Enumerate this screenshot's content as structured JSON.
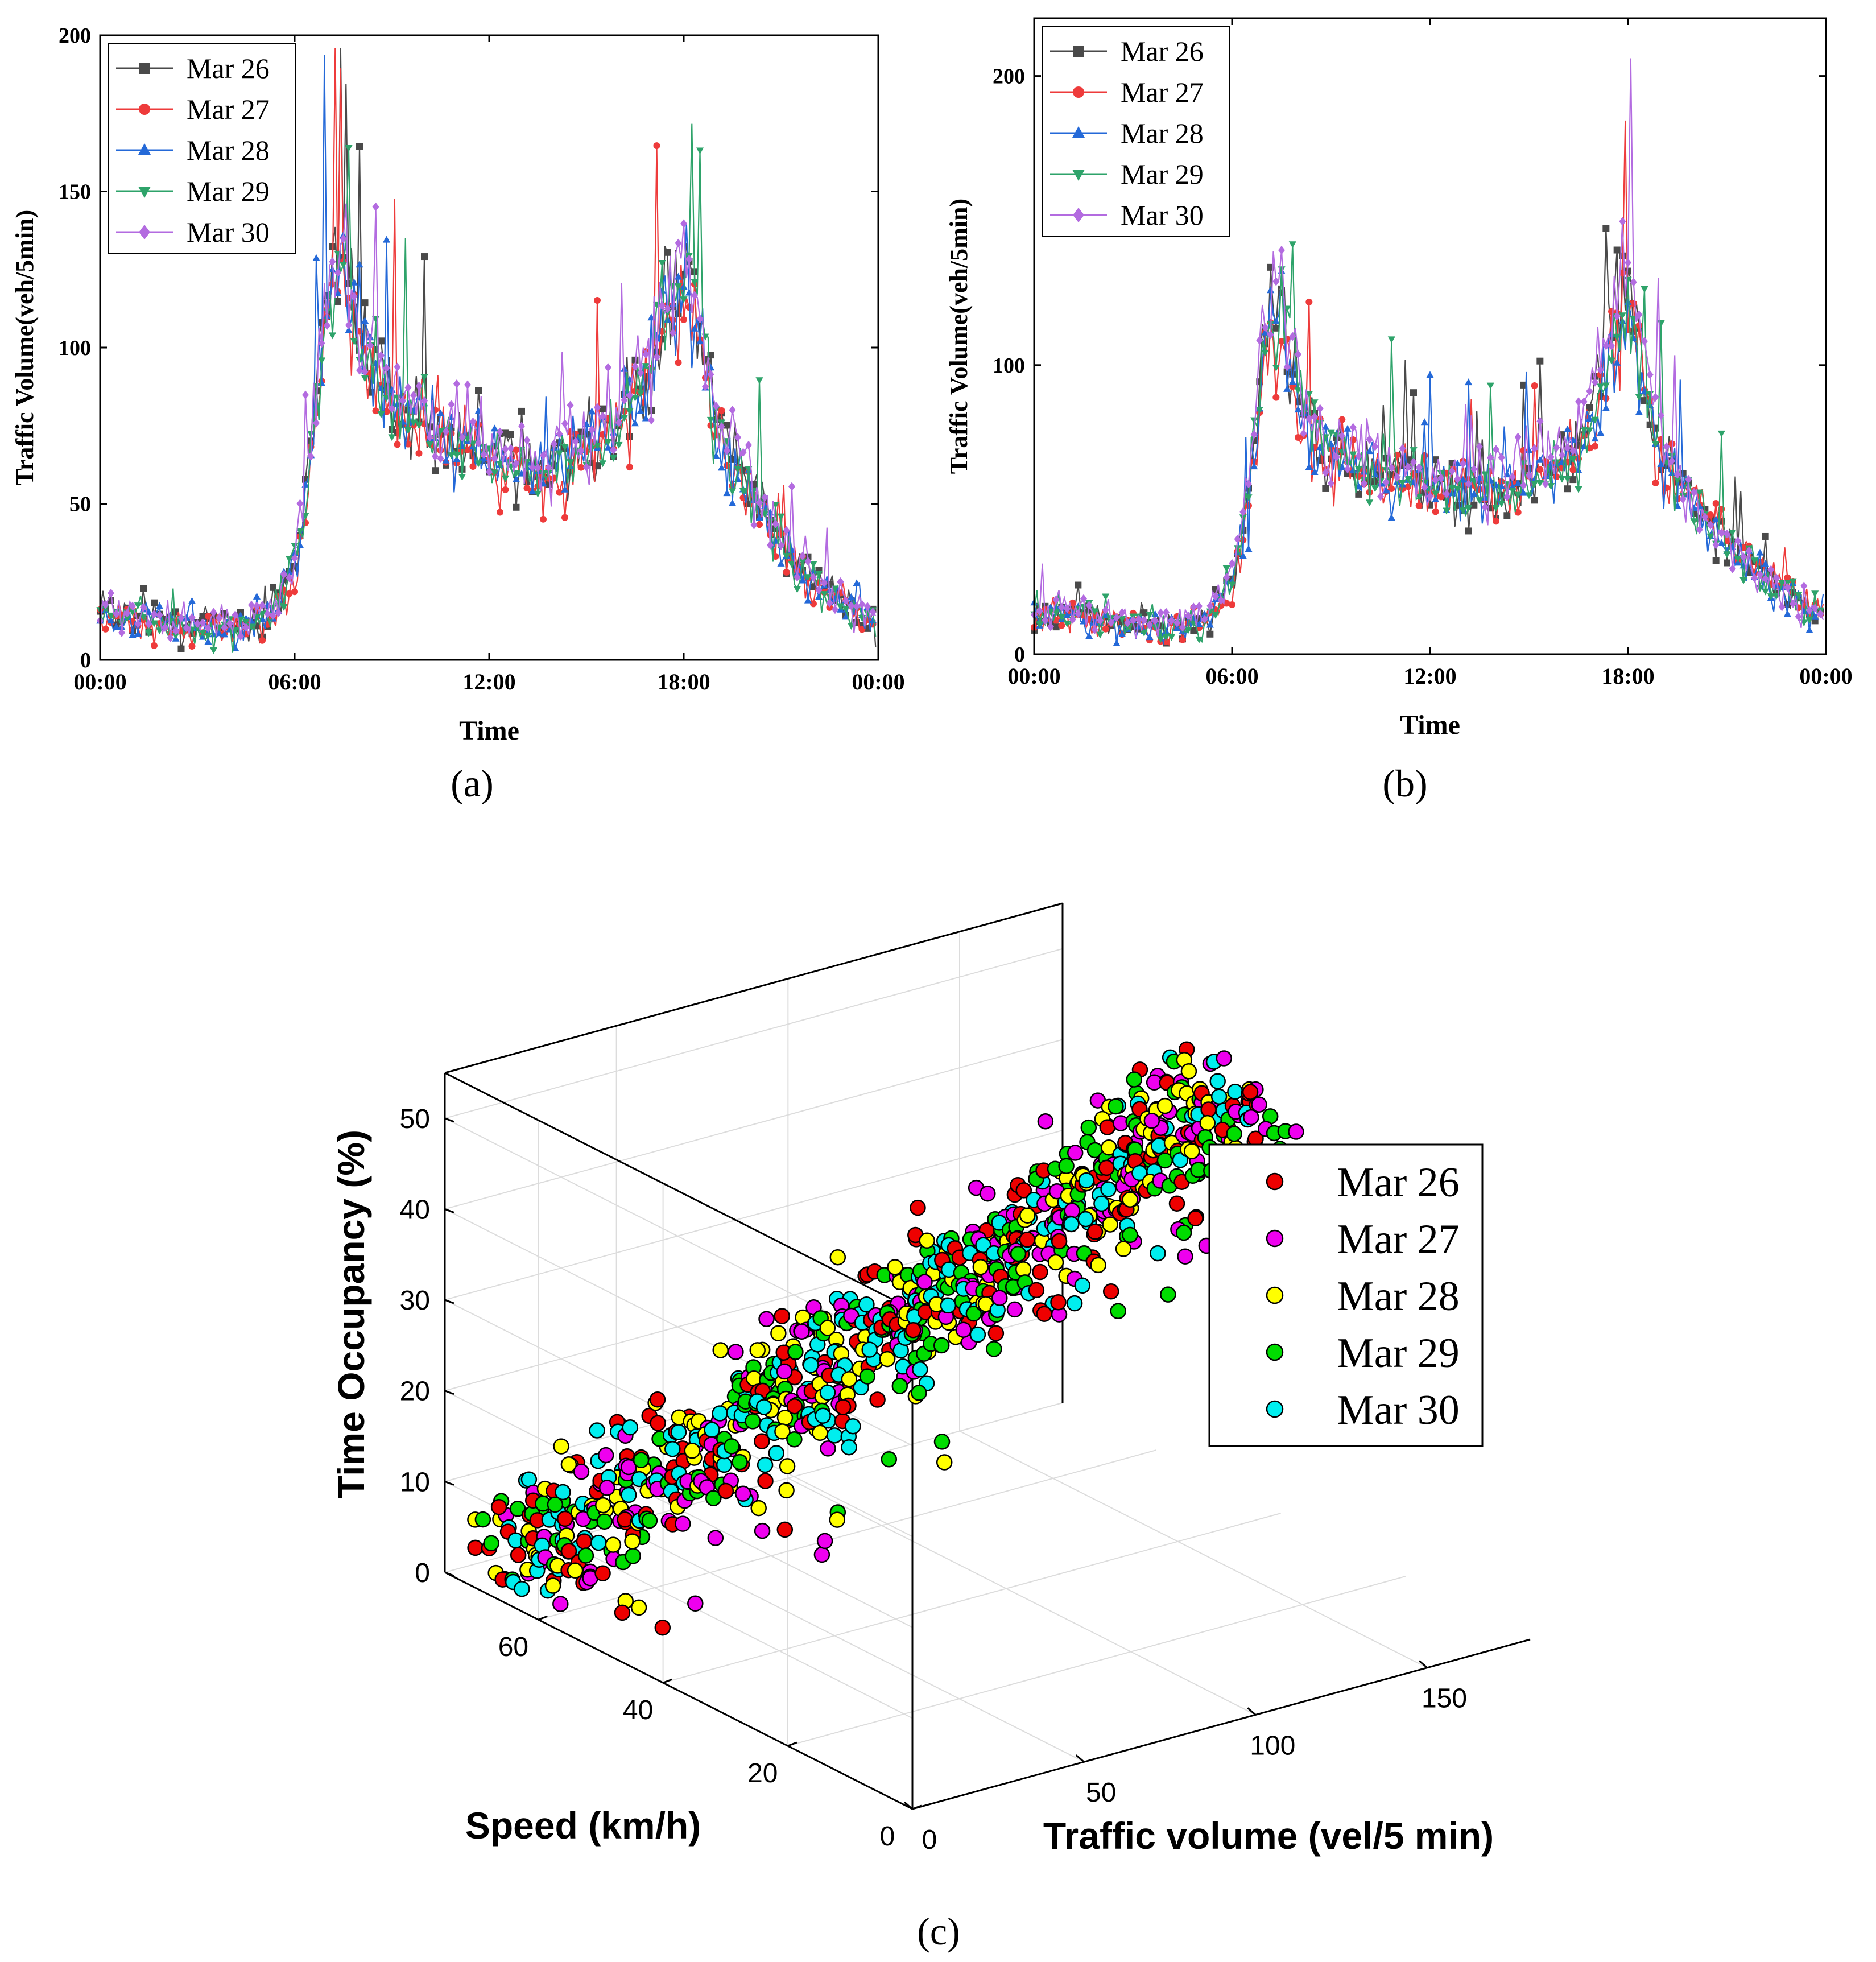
{
  "figure": {
    "panel_labels": [
      "(a)",
      "(b)",
      "(c)"
    ],
    "colors": {
      "Mar 26": "#4a4a4a",
      "Mar 27": "#ee3b3b",
      "Mar 28": "#2469d8",
      "Mar 29": "#2ea36a",
      "Mar 30": "#b36be0",
      "scatter_Mar 26": "#ee0000",
      "scatter_Mar 27": "#ee00ee",
      "scatter_Mar 28": "#ffff00",
      "scatter_Mar 29": "#00dd00",
      "scatter_Mar 30": "#00eeee"
    }
  },
  "chart_data": [
    {
      "id": "a",
      "type": "line",
      "title": "",
      "xlabel": "Time",
      "ylabel": "Traffic Volume(veh/5min)",
      "xlim_hours": [
        0,
        24
      ],
      "ylim": [
        0,
        200
      ],
      "xticks": [
        "00:00",
        "06:00",
        "12:00",
        "18:00",
        "00:00"
      ],
      "yticks": [
        "0",
        "50",
        "100",
        "150",
        "200"
      ],
      "legend": [
        "Mar 26",
        "Mar 27",
        "Mar 28",
        "Mar 29",
        "Mar 30"
      ],
      "legend_position": "top-left",
      "profile_hours": [
        0,
        1,
        2,
        3,
        4,
        5,
        5.5,
        6,
        6.5,
        7,
        7.5,
        8,
        8.5,
        9,
        10,
        11,
        12,
        13,
        14,
        15,
        16,
        16.5,
        17,
        17.5,
        18,
        18.5,
        19,
        20,
        21,
        22,
        23,
        24
      ],
      "series": [
        {
          "name": "Mar 26",
          "marker": "square",
          "values": [
            17,
            14,
            12,
            11,
            9,
            12,
            18,
            30,
            65,
            120,
            130,
            105,
            95,
            85,
            78,
            70,
            68,
            62,
            62,
            68,
            75,
            85,
            95,
            115,
            125,
            110,
            75,
            55,
            38,
            25,
            18,
            12
          ]
        },
        {
          "name": "Mar 27",
          "marker": "circle",
          "values": [
            14,
            12,
            11,
            9,
            8,
            11,
            16,
            28,
            60,
            112,
            120,
            100,
            90,
            82,
            76,
            72,
            66,
            60,
            58,
            66,
            72,
            80,
            90,
            110,
            118,
            104,
            72,
            52,
            35,
            23,
            16,
            11
          ]
        },
        {
          "name": "Mar 28",
          "marker": "triangle-up",
          "values": [
            15,
            13,
            12,
            10,
            8,
            12,
            17,
            30,
            62,
            118,
            128,
            104,
            92,
            84,
            78,
            70,
            66,
            60,
            60,
            67,
            74,
            84,
            95,
            117,
            124,
            108,
            74,
            54,
            36,
            24,
            17,
            12
          ]
        },
        {
          "name": "Mar 29",
          "marker": "triangle-down",
          "values": [
            16,
            14,
            12,
            10,
            9,
            12,
            18,
            31,
            64,
            118,
            126,
            102,
            91,
            82,
            76,
            70,
            66,
            60,
            60,
            67,
            74,
            84,
            94,
            114,
            122,
            108,
            74,
            55,
            37,
            25,
            18,
            12
          ]
        },
        {
          "name": "Mar 30",
          "marker": "diamond",
          "values": [
            18,
            16,
            14,
            12,
            11,
            14,
            20,
            34,
            68,
            118,
            124,
            106,
            96,
            86,
            80,
            74,
            70,
            64,
            66,
            72,
            80,
            90,
            100,
            118,
            126,
            110,
            78,
            58,
            40,
            27,
            19,
            13
          ]
        }
      ]
    },
    {
      "id": "b",
      "type": "line",
      "title": "",
      "xlabel": "Time",
      "ylabel": "Traffic Volume(veh/5min)",
      "xlim_hours": [
        0,
        24
      ],
      "ylim": [
        0,
        220
      ],
      "xticks": [
        "00:00",
        "06:00",
        "12:00",
        "18:00",
        "00:00"
      ],
      "yticks": [
        "0",
        "100",
        "200"
      ],
      "legend": [
        "Mar 26",
        "Mar 27",
        "Mar 28",
        "Mar 29",
        "Mar 30"
      ],
      "legend_position": "top-left",
      "profile_hours": [
        0,
        1,
        2,
        3,
        4,
        5,
        5.5,
        6,
        6.5,
        7,
        7.5,
        8,
        8.5,
        9,
        10,
        11,
        12,
        13,
        14,
        15,
        16,
        16.5,
        17,
        17.5,
        18,
        18.5,
        19,
        20,
        21,
        22,
        23,
        24
      ],
      "series": [
        {
          "name": "Mar 26",
          "marker": "square",
          "values": [
            15,
            14,
            12,
            11,
            10,
            12,
            16,
            25,
            55,
            110,
            125,
            95,
            78,
            70,
            66,
            64,
            60,
            57,
            58,
            62,
            66,
            72,
            85,
            110,
            130,
            95,
            68,
            52,
            40,
            28,
            18,
            14
          ]
        },
        {
          "name": "Mar 27",
          "marker": "circle",
          "values": [
            14,
            13,
            12,
            10,
            9,
            11,
            14,
            22,
            50,
            100,
            110,
            82,
            70,
            66,
            63,
            61,
            58,
            56,
            57,
            60,
            64,
            70,
            82,
            106,
            128,
            94,
            68,
            54,
            42,
            30,
            20,
            15
          ]
        },
        {
          "name": "Mar 28",
          "marker": "triangle-up",
          "values": [
            13,
            12,
            11,
            10,
            9,
            11,
            15,
            24,
            52,
            108,
            118,
            90,
            74,
            68,
            62,
            60,
            57,
            54,
            56,
            60,
            64,
            70,
            82,
            105,
            118,
            92,
            66,
            50,
            38,
            27,
            18,
            13
          ]
        },
        {
          "name": "Mar 29",
          "marker": "triangle-down",
          "values": [
            14,
            13,
            12,
            11,
            10,
            12,
            16,
            26,
            56,
            114,
            124,
            92,
            76,
            70,
            64,
            62,
            58,
            56,
            57,
            61,
            65,
            71,
            83,
            106,
            120,
            93,
            67,
            52,
            39,
            28,
            19,
            14
          ]
        },
        {
          "name": "Mar 30",
          "marker": "diamond",
          "values": [
            16,
            15,
            13,
            12,
            11,
            13,
            17,
            28,
            60,
            118,
            130,
            98,
            80,
            72,
            68,
            66,
            62,
            60,
            62,
            66,
            72,
            80,
            95,
            118,
            140,
            100,
            70,
            54,
            40,
            29,
            19,
            14
          ]
        }
      ]
    },
    {
      "id": "c",
      "type": "scatter",
      "projection": "3d",
      "title": "",
      "xlabel": "Traffic volume (vel/5 min)",
      "ylabel": "Speed (km/h)",
      "zlabel": "Time Occupancy (%)",
      "xlim": [
        0,
        180
      ],
      "ylim": [
        0,
        75
      ],
      "zlim": [
        0,
        55
      ],
      "xticks": [
        "0",
        "50",
        "100",
        "150"
      ],
      "yticks": [
        "0",
        "20",
        "40",
        "60"
      ],
      "zticks": [
        "0",
        "10",
        "20",
        "30",
        "40",
        "50"
      ],
      "legend": [
        "Mar 26",
        "Mar 27",
        "Mar 28",
        "Mar 29",
        "Mar 30"
      ],
      "legend_position": "right",
      "trend": {
        "points_per_series": 190,
        "x_range": [
          5,
          170
        ],
        "speed_at_x0": 70,
        "speed_slope": -0.18,
        "occupancy_slope": 0.28
      }
    }
  ]
}
